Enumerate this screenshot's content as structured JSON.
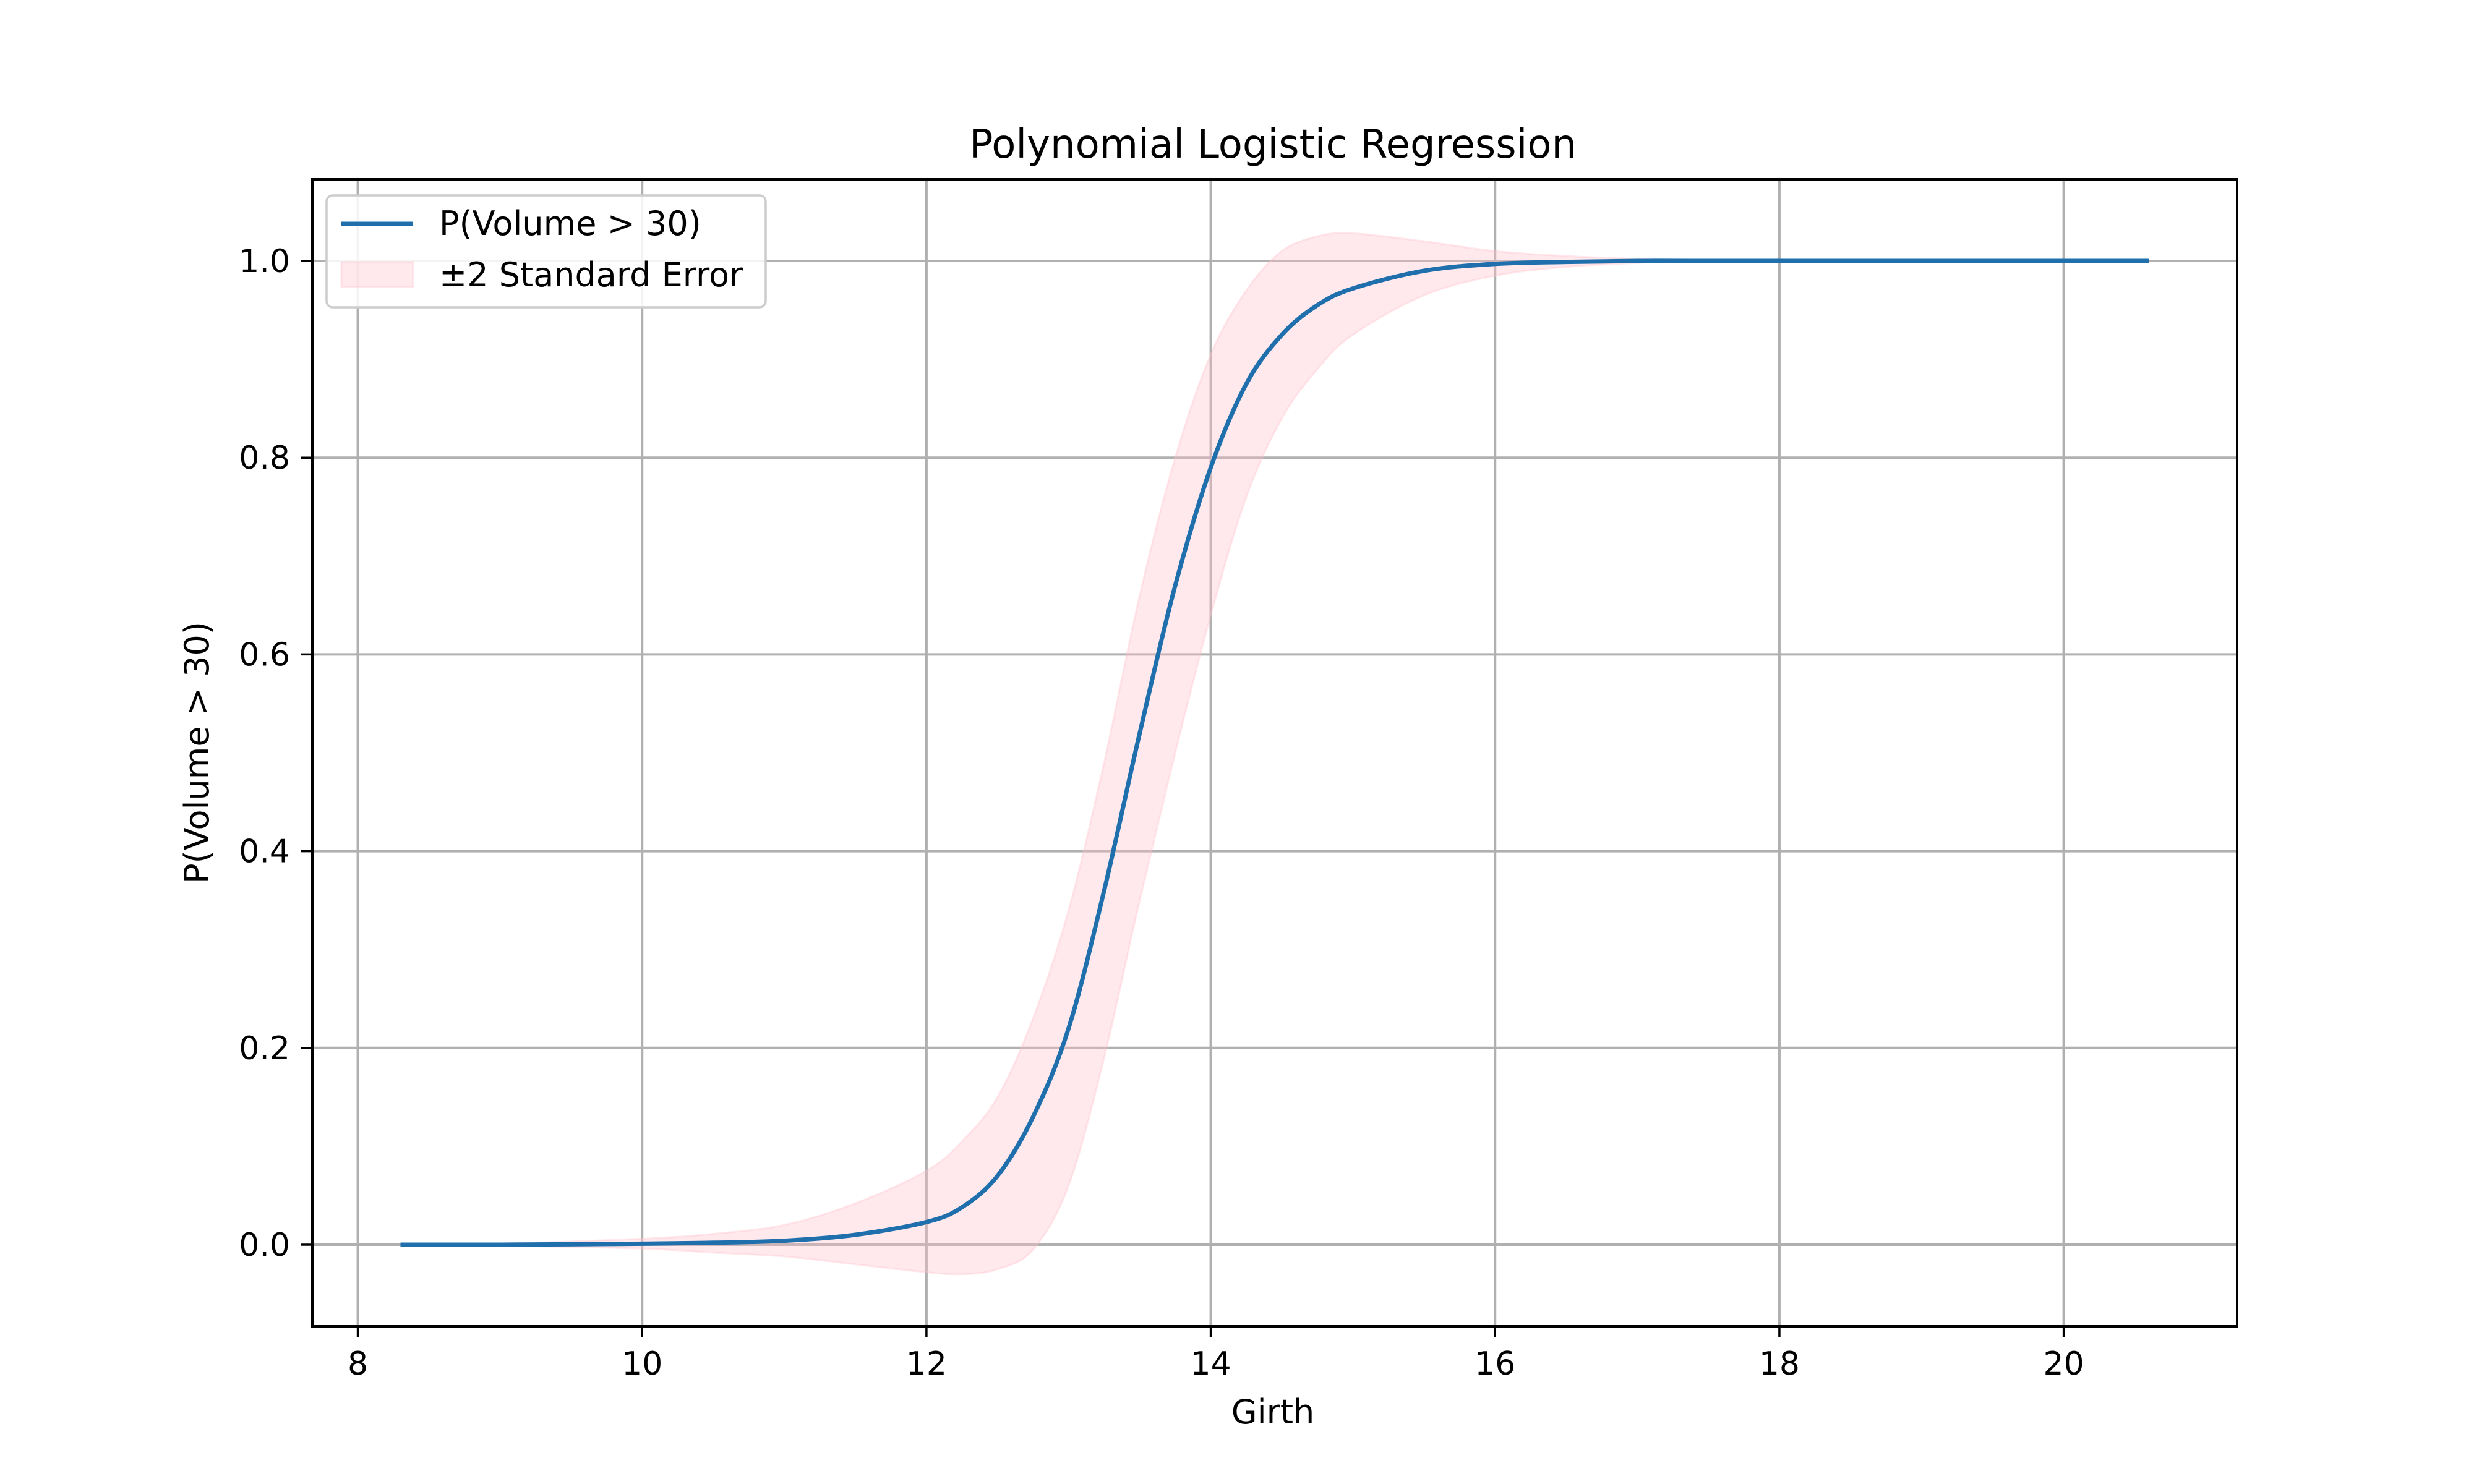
{
  "chart_data": {
    "type": "line",
    "title": "Polynomial Logistic Regression",
    "xlabel": "Girth",
    "ylabel": "P(Volume > 30)",
    "xlim": [
      7.68,
      21.22
    ],
    "ylim": [
      -0.083,
      1.083
    ],
    "xticks": [
      8,
      10,
      12,
      14,
      16,
      18,
      20
    ],
    "xtick_labels": [
      "8",
      "10",
      "12",
      "14",
      "16",
      "18",
      "20"
    ],
    "yticks": [
      0.0,
      0.2,
      0.4,
      0.6,
      0.8,
      1.0
    ],
    "ytick_labels": [
      "0.0",
      "0.2",
      "0.4",
      "0.6",
      "0.8",
      "1.0"
    ],
    "grid": true,
    "legend": {
      "placement": "upper-left",
      "entries": [
        "P(Volume > 30)",
        "±2 Standard Error"
      ]
    },
    "series": [
      {
        "name": "P(Volume > 30)",
        "kind": "line",
        "color": "#1f6fad",
        "x": [
          8.3,
          9.0,
          10.0,
          10.5,
          11.0,
          11.5,
          12.0,
          12.25,
          12.5,
          12.75,
          13.0,
          13.25,
          13.5,
          13.75,
          14.0,
          14.25,
          14.5,
          14.75,
          15.0,
          15.5,
          16.0,
          16.5,
          17.0,
          17.5,
          18.0,
          19.0,
          20.0,
          20.6
        ],
        "y": [
          0.0,
          0.0,
          0.001,
          0.002,
          0.004,
          0.01,
          0.023,
          0.038,
          0.07,
          0.13,
          0.22,
          0.36,
          0.52,
          0.67,
          0.79,
          0.875,
          0.925,
          0.955,
          0.972,
          0.99,
          0.997,
          0.999,
          1.0,
          1.0,
          1.0,
          1.0,
          1.0,
          1.0
        ]
      },
      {
        "name": "±2 Standard Error",
        "kind": "band",
        "color": "#ffc0cb",
        "opacity": 0.35,
        "x": [
          8.3,
          9.0,
          10.0,
          10.5,
          11.0,
          11.5,
          12.0,
          12.25,
          12.5,
          12.75,
          13.0,
          13.25,
          13.5,
          13.75,
          14.0,
          14.25,
          14.5,
          14.75,
          15.0,
          15.5,
          16.0,
          16.5,
          17.0,
          17.5,
          18.0,
          19.0,
          20.0,
          20.6
        ],
        "lower": [
          0.0,
          -0.001,
          -0.004,
          -0.008,
          -0.012,
          -0.02,
          -0.028,
          -0.03,
          -0.025,
          -0.005,
          0.06,
          0.19,
          0.35,
          0.5,
          0.64,
          0.76,
          0.84,
          0.89,
          0.925,
          0.965,
          0.985,
          0.994,
          0.998,
          1.0,
          1.0,
          1.0,
          1.0,
          1.0
        ],
        "upper": [
          0.0,
          0.001,
          0.006,
          0.011,
          0.02,
          0.042,
          0.075,
          0.105,
          0.15,
          0.23,
          0.34,
          0.49,
          0.66,
          0.8,
          0.905,
          0.97,
          1.01,
          1.025,
          1.028,
          1.02,
          1.01,
          1.005,
          1.002,
          1.0,
          1.0,
          1.0,
          1.0,
          1.0
        ]
      }
    ]
  }
}
